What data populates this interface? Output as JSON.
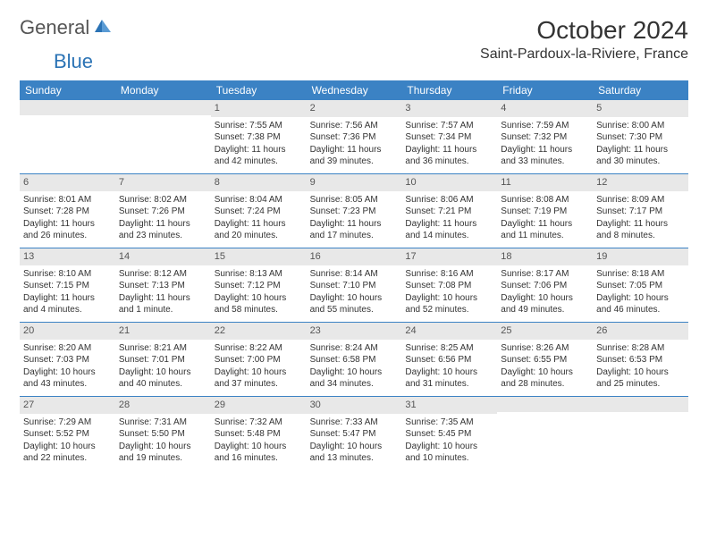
{
  "logo": {
    "text1": "General",
    "text2": "Blue"
  },
  "title": "October 2024",
  "location": "Saint-Pardoux-la-Riviere, France",
  "weekdays": [
    "Sunday",
    "Monday",
    "Tuesday",
    "Wednesday",
    "Thursday",
    "Friday",
    "Saturday"
  ],
  "colors": {
    "header_bg": "#3b82c4",
    "daynum_bg": "#e8e8e8",
    "text": "#333333",
    "logo_gray": "#555555",
    "logo_blue": "#2b73b5"
  },
  "weeks": [
    [
      null,
      null,
      {
        "n": "1",
        "sr": "Sunrise: 7:55 AM",
        "ss": "Sunset: 7:38 PM",
        "d1": "Daylight: 11 hours",
        "d2": "and 42 minutes."
      },
      {
        "n": "2",
        "sr": "Sunrise: 7:56 AM",
        "ss": "Sunset: 7:36 PM",
        "d1": "Daylight: 11 hours",
        "d2": "and 39 minutes."
      },
      {
        "n": "3",
        "sr": "Sunrise: 7:57 AM",
        "ss": "Sunset: 7:34 PM",
        "d1": "Daylight: 11 hours",
        "d2": "and 36 minutes."
      },
      {
        "n": "4",
        "sr": "Sunrise: 7:59 AM",
        "ss": "Sunset: 7:32 PM",
        "d1": "Daylight: 11 hours",
        "d2": "and 33 minutes."
      },
      {
        "n": "5",
        "sr": "Sunrise: 8:00 AM",
        "ss": "Sunset: 7:30 PM",
        "d1": "Daylight: 11 hours",
        "d2": "and 30 minutes."
      }
    ],
    [
      {
        "n": "6",
        "sr": "Sunrise: 8:01 AM",
        "ss": "Sunset: 7:28 PM",
        "d1": "Daylight: 11 hours",
        "d2": "and 26 minutes."
      },
      {
        "n": "7",
        "sr": "Sunrise: 8:02 AM",
        "ss": "Sunset: 7:26 PM",
        "d1": "Daylight: 11 hours",
        "d2": "and 23 minutes."
      },
      {
        "n": "8",
        "sr": "Sunrise: 8:04 AM",
        "ss": "Sunset: 7:24 PM",
        "d1": "Daylight: 11 hours",
        "d2": "and 20 minutes."
      },
      {
        "n": "9",
        "sr": "Sunrise: 8:05 AM",
        "ss": "Sunset: 7:23 PM",
        "d1": "Daylight: 11 hours",
        "d2": "and 17 minutes."
      },
      {
        "n": "10",
        "sr": "Sunrise: 8:06 AM",
        "ss": "Sunset: 7:21 PM",
        "d1": "Daylight: 11 hours",
        "d2": "and 14 minutes."
      },
      {
        "n": "11",
        "sr": "Sunrise: 8:08 AM",
        "ss": "Sunset: 7:19 PM",
        "d1": "Daylight: 11 hours",
        "d2": "and 11 minutes."
      },
      {
        "n": "12",
        "sr": "Sunrise: 8:09 AM",
        "ss": "Sunset: 7:17 PM",
        "d1": "Daylight: 11 hours",
        "d2": "and 8 minutes."
      }
    ],
    [
      {
        "n": "13",
        "sr": "Sunrise: 8:10 AM",
        "ss": "Sunset: 7:15 PM",
        "d1": "Daylight: 11 hours",
        "d2": "and 4 minutes."
      },
      {
        "n": "14",
        "sr": "Sunrise: 8:12 AM",
        "ss": "Sunset: 7:13 PM",
        "d1": "Daylight: 11 hours",
        "d2": "and 1 minute."
      },
      {
        "n": "15",
        "sr": "Sunrise: 8:13 AM",
        "ss": "Sunset: 7:12 PM",
        "d1": "Daylight: 10 hours",
        "d2": "and 58 minutes."
      },
      {
        "n": "16",
        "sr": "Sunrise: 8:14 AM",
        "ss": "Sunset: 7:10 PM",
        "d1": "Daylight: 10 hours",
        "d2": "and 55 minutes."
      },
      {
        "n": "17",
        "sr": "Sunrise: 8:16 AM",
        "ss": "Sunset: 7:08 PM",
        "d1": "Daylight: 10 hours",
        "d2": "and 52 minutes."
      },
      {
        "n": "18",
        "sr": "Sunrise: 8:17 AM",
        "ss": "Sunset: 7:06 PM",
        "d1": "Daylight: 10 hours",
        "d2": "and 49 minutes."
      },
      {
        "n": "19",
        "sr": "Sunrise: 8:18 AM",
        "ss": "Sunset: 7:05 PM",
        "d1": "Daylight: 10 hours",
        "d2": "and 46 minutes."
      }
    ],
    [
      {
        "n": "20",
        "sr": "Sunrise: 8:20 AM",
        "ss": "Sunset: 7:03 PM",
        "d1": "Daylight: 10 hours",
        "d2": "and 43 minutes."
      },
      {
        "n": "21",
        "sr": "Sunrise: 8:21 AM",
        "ss": "Sunset: 7:01 PM",
        "d1": "Daylight: 10 hours",
        "d2": "and 40 minutes."
      },
      {
        "n": "22",
        "sr": "Sunrise: 8:22 AM",
        "ss": "Sunset: 7:00 PM",
        "d1": "Daylight: 10 hours",
        "d2": "and 37 minutes."
      },
      {
        "n": "23",
        "sr": "Sunrise: 8:24 AM",
        "ss": "Sunset: 6:58 PM",
        "d1": "Daylight: 10 hours",
        "d2": "and 34 minutes."
      },
      {
        "n": "24",
        "sr": "Sunrise: 8:25 AM",
        "ss": "Sunset: 6:56 PM",
        "d1": "Daylight: 10 hours",
        "d2": "and 31 minutes."
      },
      {
        "n": "25",
        "sr": "Sunrise: 8:26 AM",
        "ss": "Sunset: 6:55 PM",
        "d1": "Daylight: 10 hours",
        "d2": "and 28 minutes."
      },
      {
        "n": "26",
        "sr": "Sunrise: 8:28 AM",
        "ss": "Sunset: 6:53 PM",
        "d1": "Daylight: 10 hours",
        "d2": "and 25 minutes."
      }
    ],
    [
      {
        "n": "27",
        "sr": "Sunrise: 7:29 AM",
        "ss": "Sunset: 5:52 PM",
        "d1": "Daylight: 10 hours",
        "d2": "and 22 minutes."
      },
      {
        "n": "28",
        "sr": "Sunrise: 7:31 AM",
        "ss": "Sunset: 5:50 PM",
        "d1": "Daylight: 10 hours",
        "d2": "and 19 minutes."
      },
      {
        "n": "29",
        "sr": "Sunrise: 7:32 AM",
        "ss": "Sunset: 5:48 PM",
        "d1": "Daylight: 10 hours",
        "d2": "and 16 minutes."
      },
      {
        "n": "30",
        "sr": "Sunrise: 7:33 AM",
        "ss": "Sunset: 5:47 PM",
        "d1": "Daylight: 10 hours",
        "d2": "and 13 minutes."
      },
      {
        "n": "31",
        "sr": "Sunrise: 7:35 AM",
        "ss": "Sunset: 5:45 PM",
        "d1": "Daylight: 10 hours",
        "d2": "and 10 minutes."
      },
      null,
      null
    ]
  ]
}
